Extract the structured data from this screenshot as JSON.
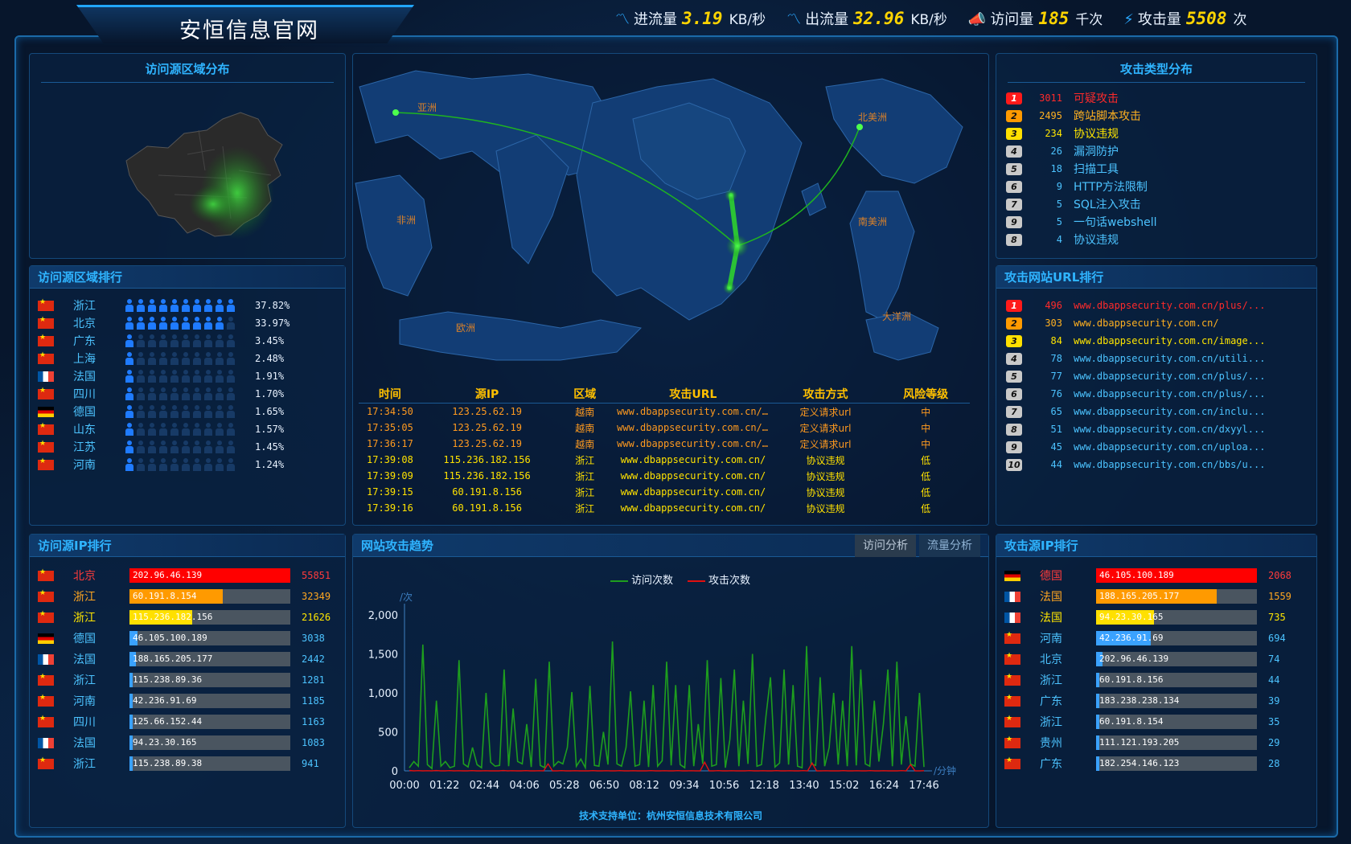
{
  "site_title": "安恒信息官网",
  "stats": [
    {
      "icon": "line-chart-icon",
      "label": "进流量",
      "value": "3.19",
      "unit": "KB/秒"
    },
    {
      "icon": "line-chart-icon",
      "label": "出流量",
      "value": "32.96",
      "unit": "KB/秒"
    },
    {
      "icon": "megaphone-icon",
      "label": "访问量",
      "value": "185",
      "unit": "千次"
    },
    {
      "icon": "lightning-icon",
      "label": "攻击量",
      "value": "5508",
      "unit": "次"
    }
  ],
  "region_distribution": {
    "title": "访问源区域分布"
  },
  "region_rank": {
    "title": "访问源区域排行",
    "rows": [
      {
        "flag": "cn",
        "name": "浙江",
        "level": 10,
        "pct": "37.82%"
      },
      {
        "flag": "cn",
        "name": "北京",
        "level": 9,
        "pct": "33.97%"
      },
      {
        "flag": "cn",
        "name": "广东",
        "level": 1,
        "pct": "3.45%"
      },
      {
        "flag": "cn",
        "name": "上海",
        "level": 1,
        "pct": "2.48%"
      },
      {
        "flag": "fr",
        "name": "法国",
        "level": 1,
        "pct": "1.91%"
      },
      {
        "flag": "cn",
        "name": "四川",
        "level": 1,
        "pct": "1.70%"
      },
      {
        "flag": "de",
        "name": "德国",
        "level": 1,
        "pct": "1.65%"
      },
      {
        "flag": "cn",
        "name": "山东",
        "level": 1,
        "pct": "1.57%"
      },
      {
        "flag": "cn",
        "name": "江苏",
        "level": 1,
        "pct": "1.45%"
      },
      {
        "flag": "cn",
        "name": "河南",
        "level": 1,
        "pct": "1.24%"
      }
    ]
  },
  "visit_ip_rank": {
    "title": "访问源IP排行",
    "rows": [
      {
        "flag": "cn",
        "name": "北京",
        "ip": "202.96.46.139",
        "count": "55851",
        "fill": 1.0,
        "color": "#ff0000",
        "name_color": "#ff3b3b",
        "count_color": "#ff3b3b"
      },
      {
        "flag": "cn",
        "name": "浙江",
        "ip": "60.191.8.154",
        "count": "32349",
        "fill": 0.58,
        "color": "#ff9a00",
        "name_color": "#ffa620",
        "count_color": "#ffa620"
      },
      {
        "flag": "cn",
        "name": "浙江",
        "ip": "115.236.182.156",
        "count": "21626",
        "fill": 0.39,
        "color": "#ffe000",
        "name_color": "#ffe600",
        "count_color": "#ffe600"
      },
      {
        "flag": "de",
        "name": "德国",
        "ip": "46.105.100.189",
        "count": "3038",
        "fill": 0.05,
        "color": "#3aa2ff",
        "name_color": "#4cc3ff",
        "count_color": "#4cc3ff"
      },
      {
        "flag": "fr",
        "name": "法国",
        "ip": "188.165.205.177",
        "count": "2442",
        "fill": 0.04,
        "color": "#3aa2ff",
        "name_color": "#4cc3ff",
        "count_color": "#4cc3ff"
      },
      {
        "flag": "cn",
        "name": "浙江",
        "ip": "115.238.89.36",
        "count": "1281",
        "fill": 0.02,
        "color": "#3aa2ff",
        "name_color": "#4cc3ff",
        "count_color": "#4cc3ff"
      },
      {
        "flag": "cn",
        "name": "河南",
        "ip": "42.236.91.69",
        "count": "1185",
        "fill": 0.02,
        "color": "#3aa2ff",
        "name_color": "#4cc3ff",
        "count_color": "#4cc3ff"
      },
      {
        "flag": "cn",
        "name": "四川",
        "ip": "125.66.152.44",
        "count": "1163",
        "fill": 0.02,
        "color": "#3aa2ff",
        "name_color": "#4cc3ff",
        "count_color": "#4cc3ff"
      },
      {
        "flag": "fr",
        "name": "法国",
        "ip": "94.23.30.165",
        "count": "1083",
        "fill": 0.02,
        "color": "#3aa2ff",
        "name_color": "#4cc3ff",
        "count_color": "#4cc3ff"
      },
      {
        "flag": "cn",
        "name": "浙江",
        "ip": "115.238.89.38",
        "count": "941",
        "fill": 0.02,
        "color": "#3aa2ff",
        "name_color": "#4cc3ff",
        "count_color": "#4cc3ff"
      }
    ]
  },
  "attack_types": {
    "title": "攻击类型分布",
    "rows": [
      {
        "rank": "1",
        "count": "3011",
        "name": "可疑攻击",
        "badge": "#ff1a1a",
        "color": "#ff2a2a"
      },
      {
        "rank": "2",
        "count": "2495",
        "name": "跨站脚本攻击",
        "badge": "#ff9a00",
        "color": "#ffb020"
      },
      {
        "rank": "3",
        "count": "234",
        "name": "协议违规",
        "badge": "#ffe000",
        "color": "#ffe600"
      },
      {
        "rank": "4",
        "count": "26",
        "name": "漏洞防护",
        "badge": "#c9c9c9",
        "color": "#4cc3ff"
      },
      {
        "rank": "5",
        "count": "18",
        "name": "扫描工具",
        "badge": "#c9c9c9",
        "color": "#4cc3ff"
      },
      {
        "rank": "6",
        "count": "9",
        "name": "HTTP方法限制",
        "badge": "#c9c9c9",
        "color": "#4cc3ff"
      },
      {
        "rank": "7",
        "count": "5",
        "name": "SQL注入攻击",
        "badge": "#c9c9c9",
        "color": "#4cc3ff"
      },
      {
        "rank": "9",
        "count": "5",
        "name": "一句话webshell",
        "badge": "#c9c9c9",
        "color": "#4cc3ff"
      },
      {
        "rank": "8",
        "count": "4",
        "name": "协议违规",
        "badge": "#c9c9c9",
        "color": "#4cc3ff"
      }
    ]
  },
  "attack_url_rank": {
    "title": "攻击网站URL排行",
    "rows": [
      {
        "rank": "1",
        "count": "496",
        "url": "www.dbappsecurity.com.cn/plus/...",
        "badge": "#ff1a1a",
        "color": "#ff2a2a"
      },
      {
        "rank": "2",
        "count": "303",
        "url": "www.dbappsecurity.com.cn/",
        "badge": "#ff9a00",
        "color": "#ffb020"
      },
      {
        "rank": "3",
        "count": "84",
        "url": "www.dbappsecurity.com.cn/image...",
        "badge": "#ffe000",
        "color": "#ffe600"
      },
      {
        "rank": "4",
        "count": "78",
        "url": "www.dbappsecurity.com.cn/utili...",
        "badge": "#c9c9c9",
        "color": "#4cc3ff"
      },
      {
        "rank": "5",
        "count": "77",
        "url": "www.dbappsecurity.com.cn/plus/...",
        "badge": "#c9c9c9",
        "color": "#4cc3ff"
      },
      {
        "rank": "6",
        "count": "76",
        "url": "www.dbappsecurity.com.cn/plus/...",
        "badge": "#c9c9c9",
        "color": "#4cc3ff"
      },
      {
        "rank": "7",
        "count": "65",
        "url": "www.dbappsecurity.com.cn/inclu...",
        "badge": "#c9c9c9",
        "color": "#4cc3ff"
      },
      {
        "rank": "8",
        "count": "51",
        "url": "www.dbappsecurity.com.cn/dxyyl...",
        "badge": "#c9c9c9",
        "color": "#4cc3ff"
      },
      {
        "rank": "9",
        "count": "45",
        "url": "www.dbappsecurity.com.cn/uploa...",
        "badge": "#c9c9c9",
        "color": "#4cc3ff"
      },
      {
        "rank": "10",
        "count": "44",
        "url": "www.dbappsecurity.com.cn/bbs/u...",
        "badge": "#c9c9c9",
        "color": "#4cc3ff"
      }
    ]
  },
  "attack_source_ip_rank": {
    "title": "攻击源IP排行",
    "rows": [
      {
        "flag": "de",
        "name": "德国",
        "ip": "46.105.100.189",
        "count": "2068",
        "fill": 1.0,
        "color": "#ff0000",
        "name_color": "#ff3b3b",
        "count_color": "#ff3b3b"
      },
      {
        "flag": "fr",
        "name": "法国",
        "ip": "188.165.205.177",
        "count": "1559",
        "fill": 0.75,
        "color": "#ff9a00",
        "name_color": "#ffa620",
        "count_color": "#ffa620"
      },
      {
        "flag": "fr",
        "name": "法国",
        "ip": "94.23.30.165",
        "count": "735",
        "fill": 0.36,
        "color": "#ffe000",
        "name_color": "#ffe600",
        "count_color": "#ffe600"
      },
      {
        "flag": "cn",
        "name": "河南",
        "ip": "42.236.91.69",
        "count": "694",
        "fill": 0.34,
        "color": "#3aa2ff",
        "name_color": "#4cc3ff",
        "count_color": "#4cc3ff"
      },
      {
        "flag": "cn",
        "name": "北京",
        "ip": "202.96.46.139",
        "count": "74",
        "fill": 0.04,
        "color": "#3aa2ff",
        "name_color": "#4cc3ff",
        "count_color": "#4cc3ff"
      },
      {
        "flag": "cn",
        "name": "浙江",
        "ip": "60.191.8.156",
        "count": "44",
        "fill": 0.02,
        "color": "#3aa2ff",
        "name_color": "#4cc3ff",
        "count_color": "#4cc3ff"
      },
      {
        "flag": "cn",
        "name": "广东",
        "ip": "183.238.238.134",
        "count": "39",
        "fill": 0.02,
        "color": "#3aa2ff",
        "name_color": "#4cc3ff",
        "count_color": "#4cc3ff"
      },
      {
        "flag": "cn",
        "name": "浙江",
        "ip": "60.191.8.154",
        "count": "35",
        "fill": 0.02,
        "color": "#3aa2ff",
        "name_color": "#4cc3ff",
        "count_color": "#4cc3ff"
      },
      {
        "flag": "cn",
        "name": "贵州",
        "ip": "111.121.193.205",
        "count": "29",
        "fill": 0.02,
        "color": "#3aa2ff",
        "name_color": "#4cc3ff",
        "count_color": "#4cc3ff"
      },
      {
        "flag": "cn",
        "name": "广东",
        "ip": "182.254.146.123",
        "count": "28",
        "fill": 0.02,
        "color": "#3aa2ff",
        "name_color": "#4cc3ff",
        "count_color": "#4cc3ff"
      }
    ]
  },
  "world_map": {
    "labels": [
      "亚洲",
      "北美洲",
      "非洲",
      "南美洲",
      "欧洲",
      "大洋洲"
    ]
  },
  "attack_log": {
    "headers": [
      "时间",
      "源IP",
      "区域",
      "攻击URL",
      "攻击方式",
      "风险等级"
    ],
    "rows": [
      {
        "time": "17:34:50",
        "ip": "123.25.62.19",
        "region": "越南",
        "url": "www.dbappsecurity.com.cn/inde…",
        "method": "定义请求url",
        "risk": "中",
        "style": "orange"
      },
      {
        "time": "17:35:05",
        "ip": "123.25.62.19",
        "region": "越南",
        "url": "www.dbappsecurity.com.cn/inde…",
        "method": "定义请求url",
        "risk": "中",
        "style": "orange"
      },
      {
        "time": "17:36:17",
        "ip": "123.25.62.19",
        "region": "越南",
        "url": "www.dbappsecurity.com.cn/inde…",
        "method": "定义请求url",
        "risk": "中",
        "style": "orange"
      },
      {
        "time": "17:39:08",
        "ip": "115.236.182.156",
        "region": "浙江",
        "url": "www.dbappsecurity.com.cn/",
        "method": "协议违规",
        "risk": "低",
        "style": "yellow"
      },
      {
        "time": "17:39:09",
        "ip": "115.236.182.156",
        "region": "浙江",
        "url": "www.dbappsecurity.com.cn/",
        "method": "协议违规",
        "risk": "低",
        "style": "yellow"
      },
      {
        "time": "17:39:15",
        "ip": "60.191.8.156",
        "region": "浙江",
        "url": "www.dbappsecurity.com.cn/",
        "method": "协议违规",
        "risk": "低",
        "style": "yellow"
      },
      {
        "time": "17:39:16",
        "ip": "60.191.8.156",
        "region": "浙江",
        "url": "www.dbappsecurity.com.cn/",
        "method": "协议违规",
        "risk": "低",
        "style": "yellow"
      }
    ]
  },
  "trend": {
    "title": "网站攻击趋势",
    "tabs": [
      "访问分析",
      "流量分析"
    ],
    "footer": "技术支持单位：杭州安恒信息技术有限公司"
  },
  "chart_data": {
    "type": "line",
    "xlabel": "/分钟",
    "ylabel": "/次",
    "ylim": [
      0,
      2000
    ],
    "yticks": [
      "0",
      "500",
      "1,000",
      "1,500",
      "2,000"
    ],
    "xticks": [
      "00:00",
      "01:22",
      "02:44",
      "04:06",
      "05:28",
      "06:50",
      "08:12",
      "09:34",
      "10:56",
      "12:18",
      "13:40",
      "15:02",
      "16:24",
      "17:46"
    ],
    "series": [
      {
        "name": "访问次数",
        "color": "#1e9e1e",
        "values": [
          40,
          120,
          60,
          1620,
          80,
          30,
          900,
          60,
          120,
          40,
          60,
          1420,
          90,
          50,
          300,
          80,
          40,
          1000,
          110,
          60,
          70,
          1300,
          60,
          800,
          120,
          90,
          600,
          50,
          1180,
          70,
          40,
          1400,
          60,
          120,
          90,
          300,
          1010,
          60,
          150,
          40,
          1090,
          70,
          60,
          500,
          80,
          1660,
          90,
          60,
          300,
          1020,
          60,
          80,
          900,
          50,
          1100,
          60,
          130,
          1400,
          70,
          1100,
          80,
          40,
          1100,
          60,
          600,
          90,
          1420,
          60,
          80,
          1190,
          40,
          400,
          1300,
          60,
          900,
          90,
          1500,
          60,
          80,
          700,
          1200,
          50,
          100,
          1300,
          80,
          1100,
          60,
          40,
          1600,
          90,
          70,
          1200,
          60,
          300,
          1000,
          80,
          900,
          60,
          1600,
          70,
          1300,
          90,
          60,
          900,
          120,
          600,
          1300,
          60,
          1400,
          80,
          700,
          90,
          60,
          1000,
          50
        ]
      },
      {
        "name": "攻击次数",
        "color": "#e01010",
        "values": [
          5,
          0,
          3,
          0,
          2,
          0,
          4,
          0,
          0,
          3,
          0,
          2,
          0,
          0,
          3,
          0,
          0,
          2,
          0,
          0,
          0,
          4,
          0,
          2,
          0,
          0,
          3,
          0,
          0,
          2,
          0,
          90,
          0,
          0,
          3,
          0,
          0,
          2,
          0,
          0,
          0,
          3,
          0,
          0,
          2,
          0,
          0,
          3,
          0,
          0,
          2,
          0,
          0,
          0,
          3,
          0,
          0,
          2,
          0,
          0,
          3,
          0,
          0,
          2,
          0,
          0,
          110,
          0,
          0,
          3,
          0,
          0,
          2,
          0,
          0,
          0,
          3,
          0,
          0,
          2,
          0,
          0,
          3,
          0,
          0,
          2,
          0,
          0,
          3,
          0,
          100,
          0,
          0,
          2,
          0,
          0,
          0,
          3,
          0,
          0,
          2,
          0,
          0,
          3,
          0,
          0,
          2,
          0,
          0,
          0,
          3,
          0,
          80,
          0,
          0,
          2
        ]
      }
    ]
  }
}
